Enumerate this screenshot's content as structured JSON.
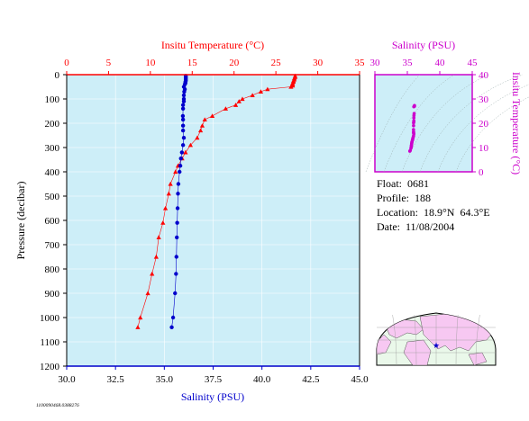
{
  "colors": {
    "temperature": "#ff0000",
    "salinity": "#0000cc",
    "inset": "#cc00cc",
    "plot_bg": "#cdeef8",
    "land": "#f7c8f2",
    "ocean": "#eaf8ea"
  },
  "chart_data": [
    {
      "type": "line",
      "id": "main-profile",
      "xlabel_top": "Insitu Temperature (°C)",
      "xlabel_bottom": "Salinity (PSU)",
      "ylabel": "Pressure (decibar)",
      "temp_range": [
        0,
        35
      ],
      "temp_ticks": [
        "0",
        "5",
        "10",
        "15",
        "20",
        "25",
        "30",
        "35"
      ],
      "sal_range": [
        30.0,
        45.0
      ],
      "sal_ticks": [
        "30.0",
        "32.5",
        "35.0",
        "37.5",
        "40.0",
        "42.5",
        "45.0"
      ],
      "pressure_range": [
        0,
        1200
      ],
      "pressure_ticks": [
        "0",
        "100",
        "200",
        "300",
        "400",
        "500",
        "600",
        "700",
        "800",
        "900",
        "1000",
        "1100",
        "1200"
      ],
      "series": [
        {
          "name": "Insitu Temperature (°C)",
          "marker": "triangle",
          "points": [
            [
              27.3,
              5
            ],
            [
              27.3,
              10
            ],
            [
              27.2,
              15
            ],
            [
              27.2,
              20
            ],
            [
              27.1,
              25
            ],
            [
              27.1,
              30
            ],
            [
              27.0,
              35
            ],
            [
              27.0,
              40
            ],
            [
              27.0,
              45
            ],
            [
              26.8,
              50
            ],
            [
              24.0,
              60
            ],
            [
              23.2,
              70
            ],
            [
              22.2,
              85
            ],
            [
              21.0,
              100
            ],
            [
              20.6,
              110
            ],
            [
              20.2,
              125
            ],
            [
              19.0,
              140
            ],
            [
              17.4,
              170
            ],
            [
              16.5,
              185
            ],
            [
              16.2,
              210
            ],
            [
              16.0,
              230
            ],
            [
              15.6,
              260
            ],
            [
              14.8,
              290
            ],
            [
              14.2,
              320
            ],
            [
              13.8,
              345
            ],
            [
              13.3,
              375
            ],
            [
              13.0,
              400
            ],
            [
              12.4,
              450
            ],
            [
              12.2,
              490
            ],
            [
              11.8,
              550
            ],
            [
              11.5,
              610
            ],
            [
              11.0,
              670
            ],
            [
              10.7,
              750
            ],
            [
              10.2,
              820
            ],
            [
              9.7,
              900
            ],
            [
              8.8,
              1000
            ],
            [
              8.5,
              1040
            ]
          ]
        },
        {
          "name": "Salinity (PSU)",
          "marker": "circle",
          "points": [
            [
              36.1,
              5
            ],
            [
              36.1,
              10
            ],
            [
              36.1,
              15
            ],
            [
              36.1,
              20
            ],
            [
              36.1,
              25
            ],
            [
              36.08,
              30
            ],
            [
              36.08,
              35
            ],
            [
              36.05,
              40
            ],
            [
              36.0,
              50
            ],
            [
              36.05,
              60
            ],
            [
              36.02,
              70
            ],
            [
              36.0,
              85
            ],
            [
              36.0,
              100
            ],
            [
              36.0,
              110
            ],
            [
              35.96,
              125
            ],
            [
              35.96,
              140
            ],
            [
              35.95,
              170
            ],
            [
              35.96,
              185
            ],
            [
              35.96,
              210
            ],
            [
              35.96,
              230
            ],
            [
              36.0,
              260
            ],
            [
              35.96,
              290
            ],
            [
              35.9,
              320
            ],
            [
              35.85,
              345
            ],
            [
              35.82,
              375
            ],
            [
              35.78,
              400
            ],
            [
              35.72,
              450
            ],
            [
              35.7,
              490
            ],
            [
              35.68,
              550
            ],
            [
              35.66,
              610
            ],
            [
              35.64,
              670
            ],
            [
              35.62,
              750
            ],
            [
              35.6,
              820
            ],
            [
              35.55,
              900
            ],
            [
              35.45,
              1000
            ],
            [
              35.38,
              1040
            ]
          ]
        }
      ]
    },
    {
      "type": "scatter",
      "id": "ts-inset",
      "xlabel": "Salinity (PSU)",
      "ylabel": "Insitu Temperature (°C)",
      "xlim": [
        30,
        45
      ],
      "ylim": [
        0,
        40
      ],
      "x_ticks": [
        "30",
        "35",
        "40",
        "45"
      ],
      "y_ticks": [
        "0",
        "10",
        "20",
        "30",
        "40"
      ],
      "points": [
        [
          36.1,
          27.3
        ],
        [
          36.1,
          27.0
        ],
        [
          36.0,
          26.8
        ],
        [
          36.05,
          24.0
        ],
        [
          36.02,
          23.2
        ],
        [
          36.0,
          22.2
        ],
        [
          36.0,
          21.0
        ],
        [
          36.0,
          20.6
        ],
        [
          35.96,
          20.2
        ],
        [
          35.96,
          19.0
        ],
        [
          35.95,
          17.4
        ],
        [
          35.96,
          16.5
        ],
        [
          35.96,
          16.2
        ],
        [
          35.96,
          16.0
        ],
        [
          36.0,
          15.6
        ],
        [
          35.96,
          14.8
        ],
        [
          35.9,
          14.2
        ],
        [
          35.85,
          13.8
        ],
        [
          35.82,
          13.3
        ],
        [
          35.78,
          13.0
        ],
        [
          35.72,
          12.4
        ],
        [
          35.7,
          12.2
        ],
        [
          35.68,
          11.8
        ],
        [
          35.66,
          11.5
        ],
        [
          35.64,
          11.0
        ],
        [
          35.62,
          10.7
        ],
        [
          35.6,
          10.2
        ],
        [
          35.55,
          9.7
        ],
        [
          35.45,
          8.8
        ],
        [
          35.38,
          8.5
        ]
      ]
    }
  ],
  "float_info": {
    "float": "Float:  0681",
    "profile": "Profile:  188",
    "location": "Location:  18.9°N  64.3°E",
    "date": "Date:  11/08/2004"
  },
  "map": {
    "marker_icon": "star-icon",
    "location_lat": 18.9,
    "location_lon": 64.3
  },
  "footer_code": "1100090468.0388276"
}
